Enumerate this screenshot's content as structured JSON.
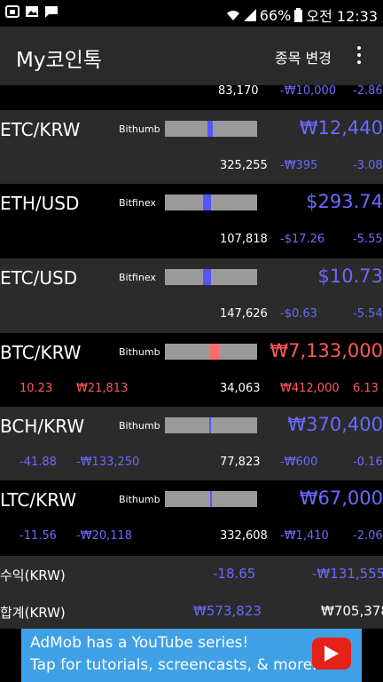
{
  "status_bar": {
    "battery": "66%",
    "time": "오전 12:33",
    "icons": [
      "app-icon",
      "image-icon",
      "message-icon",
      "wifi-icon",
      "signal-icon",
      "battery-icon"
    ]
  },
  "app_bar": {
    "title": "My코인톡",
    "change_label": "종목 변경",
    "more_icon": "more-vert-icon"
  },
  "partial_row": {
    "volume": "83,170",
    "change": "-₩10,000",
    "percent": "-2.86"
  },
  "rows": [
    {
      "symbol": "ETC/KRW",
      "exchange": "Bithumb",
      "price": "₩12,440",
      "low": "",
      "high": "",
      "volume": "325,255",
      "change": "-₩395",
      "percent": "-3.08",
      "marker_color": "#5555ff",
      "marker_pos": 0.46,
      "marker_size": 0.06,
      "price_color": "#6a6aff",
      "bg": "gray"
    },
    {
      "symbol": "ETH/USD",
      "exchange": "Bitfinex",
      "price": "$293.74",
      "low": "",
      "high": "",
      "volume": "107,818",
      "change": "-$17.26",
      "percent": "-5.55",
      "marker_color": "#5555ff",
      "marker_pos": 0.41,
      "marker_size": 0.09,
      "price_color": "#6a6aff",
      "bg": "black"
    },
    {
      "symbol": "ETC/USD",
      "exchange": "Bitfinex",
      "price": "$10.73",
      "low": "",
      "high": "",
      "volume": "147,626",
      "change": "-$0.63",
      "percent": "-5.54",
      "marker_color": "#5555ff",
      "marker_pos": 0.41,
      "marker_size": 0.09,
      "price_color": "#6a6aff",
      "bg": "gray"
    },
    {
      "symbol": "BTC/KRW",
      "exchange": "Bithumb",
      "price": "₩7,133,000",
      "low": "10.23",
      "high": "₩21,813",
      "volume": "34,063",
      "change": "₩412,000",
      "percent": "6.13",
      "marker_color": "#ff6b6b",
      "marker_pos": 0.49,
      "marker_size": 0.1,
      "price_color": "#ff5a5a",
      "bg": "black"
    },
    {
      "symbol": "BCH/KRW",
      "exchange": "Bithumb",
      "price": "₩370,400",
      "low": "-41.88",
      "high": "-₩133,250",
      "volume": "77,823",
      "change": "-₩600",
      "percent": "-0.16",
      "marker_color": "#5555ff",
      "marker_pos": 0.48,
      "marker_size": 0.02,
      "price_color": "#6a6aff",
      "bg": "gray"
    },
    {
      "symbol": "LTC/KRW",
      "exchange": "Bithumb",
      "price": "₩67,000",
      "low": "-11.56",
      "high": "-₩20,118",
      "volume": "332,608",
      "change": "-₩1,410",
      "percent": "-2.06",
      "marker_color": "#5555ff",
      "marker_pos": 0.49,
      "marker_size": 0.02,
      "price_color": "#6a6aff",
      "bg": "black"
    }
  ],
  "summary": {
    "profit_label": "수익(KRW)",
    "profit_percent": "-18.65",
    "profit_amount": "-₩131,555",
    "total_label": "합계(KRW)",
    "total_cost": "₩573,823",
    "total_value": "₩705,378"
  },
  "ad": {
    "line1": "AdMob has a YouTube series!",
    "line2": "Tap for tutorials, screencasts, & more.",
    "icon": "youtube-play-icon",
    "color": "#3fa0e6"
  }
}
